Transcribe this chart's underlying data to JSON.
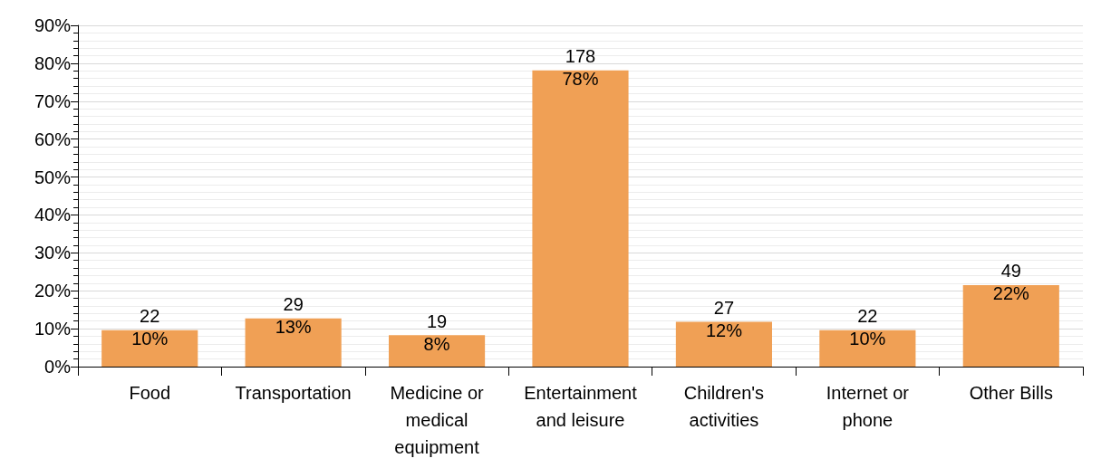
{
  "chart_data": {
    "type": "bar",
    "categories": [
      "Food",
      "Transportation",
      "Medicine or\nmedical\nequipment",
      "Entertainment\nand leisure",
      "Children's\nactivities",
      "Internet or\nphone",
      "Other Bills"
    ],
    "values": [
      9.6,
      12.7,
      8.3,
      78.1,
      11.8,
      9.6,
      21.5
    ],
    "value_labels": [
      "22\n10%",
      "29\n13%",
      "19\n8%",
      "178\n78%",
      "27\n12%",
      "22\n10%",
      "49\n22%"
    ],
    "color": "#f0a055",
    "ylim": [
      0,
      90
    ],
    "yticks": [
      {
        "value": 0,
        "label": "0%"
      },
      {
        "value": 10,
        "label": "10%"
      },
      {
        "value": 20,
        "label": "20%"
      },
      {
        "value": 30,
        "label": "30%"
      },
      {
        "value": 40,
        "label": "40%"
      },
      {
        "value": 50,
        "label": "50%"
      },
      {
        "value": 60,
        "label": "60%"
      },
      {
        "value": 70,
        "label": "70%"
      },
      {
        "value": 80,
        "label": "80%"
      },
      {
        "value": 90,
        "label": "90%"
      }
    ],
    "grid": "y"
  }
}
